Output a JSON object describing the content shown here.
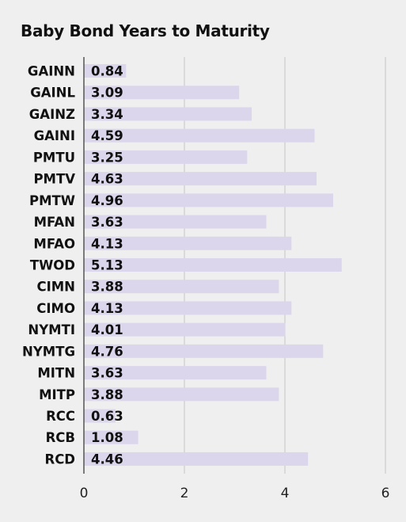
{
  "chart_data": {
    "type": "bar",
    "orientation": "horizontal",
    "title": "Baby Bond Years to Maturity",
    "xlabel": "",
    "ylabel": "",
    "categories": [
      "GAINN",
      "GAINL",
      "GAINZ",
      "GAINI",
      "PMTU",
      "PMTV",
      "PMTW",
      "MFAN",
      "MFAO",
      "TWOD",
      "CIMN",
      "CIMO",
      "NYMTI",
      "NYMTG",
      "MITN",
      "MITP",
      "RCC",
      "RCB",
      "RCD"
    ],
    "values": [
      0.84,
      3.09,
      3.34,
      4.59,
      3.25,
      4.63,
      4.96,
      3.63,
      4.13,
      5.13,
      3.88,
      4.13,
      4.01,
      4.76,
      3.63,
      3.88,
      0.63,
      1.08,
      4.46
    ],
    "value_labels": [
      "0.84",
      "3.09",
      "3.34",
      "4.59",
      "3.25",
      "4.63",
      "4.96",
      "3.63",
      "4.13",
      "5.13",
      "3.88",
      "4.13",
      "4.01",
      "4.76",
      "3.63",
      "3.88",
      "0.63",
      "1.08",
      "4.46"
    ],
    "xlim": [
      0,
      6
    ],
    "xticks": [
      0,
      2,
      4,
      6
    ],
    "grid": true,
    "bar_color": "#dcd6ec",
    "gridline_color": "#c4c4c4",
    "background_color": "#efefef"
  }
}
